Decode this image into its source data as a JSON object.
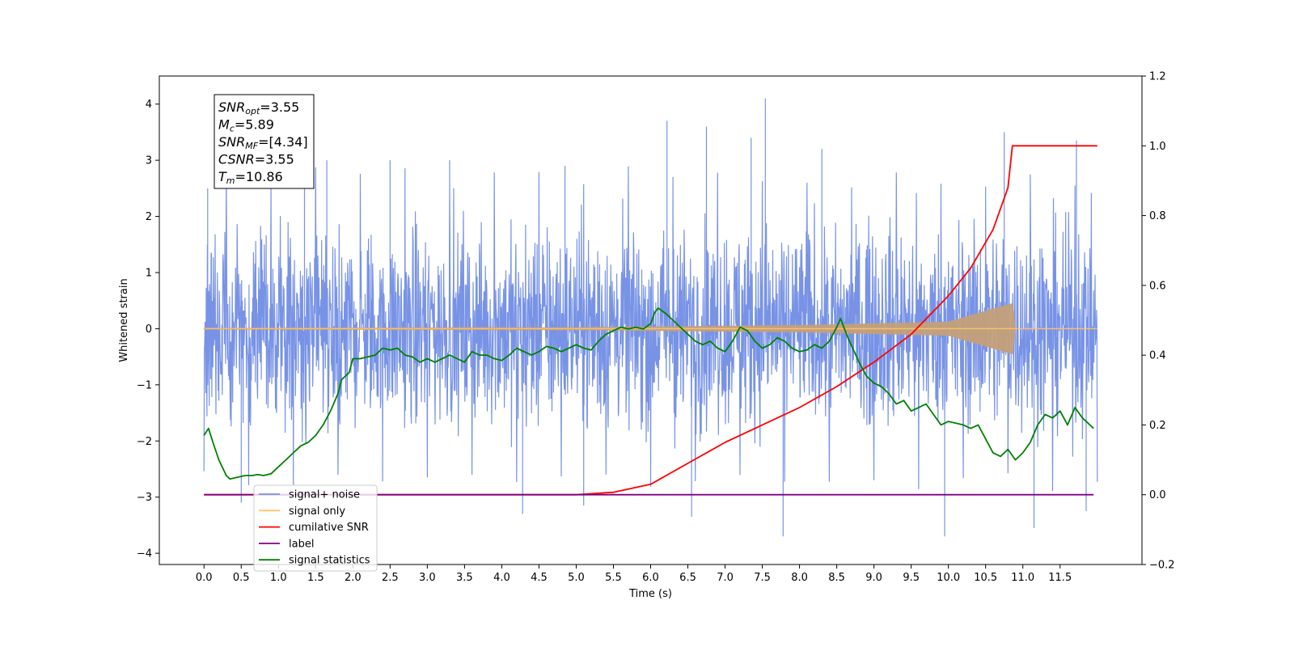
{
  "chart_data": {
    "type": "line",
    "xlabel": "Time (s)",
    "ylabel": "Whitened strain",
    "xlim": [
      -0.6,
      12.6
    ],
    "ylim": [
      -4.2,
      4.5
    ],
    "y2lim": [
      -0.2,
      1.2
    ],
    "x_ticks": [
      0.0,
      0.5,
      1.0,
      1.5,
      2.0,
      2.5,
      3.0,
      3.5,
      4.0,
      4.5,
      5.0,
      5.5,
      6.0,
      6.5,
      7.0,
      7.5,
      8.0,
      8.5,
      9.0,
      9.5,
      10.0,
      10.5,
      11.0,
      11.5
    ],
    "x_tick_labels": [
      "0.0",
      "0.5",
      "1.0",
      "1.5",
      "2.0",
      "2.5",
      "3.0",
      "3.5",
      "4.0",
      "4.5",
      "5.0",
      "5.5",
      "6.0",
      "6.5",
      "7.0",
      "7.5",
      "8.0",
      "8.5",
      "9.0",
      "9.5",
      "10.0",
      "10.5",
      "11.0",
      "11.5"
    ],
    "y_ticks": [
      -4,
      -3,
      -2,
      -1,
      0,
      1,
      2,
      3,
      4
    ],
    "y_tick_labels": [
      "−4",
      "−3",
      "−2",
      "−1",
      "0",
      "1",
      "2",
      "3",
      "4"
    ],
    "y2_ticks": [
      -0.2,
      0.0,
      0.2,
      0.4,
      0.6,
      0.8,
      1.0,
      1.2
    ],
    "y2_tick_labels": [
      "−0.2",
      "0.0",
      "0.2",
      "0.4",
      "0.6",
      "0.8",
      "1.0",
      "1.2"
    ],
    "legend_position": "lower-left",
    "series": [
      {
        "name": "signal+ noise",
        "axis": "left",
        "color": "#7893e6",
        "kind": "noise",
        "x_range": [
          0.0,
          12.0
        ],
        "core_amplitude": 1.9,
        "peak_values": [
          {
            "x": 0.05,
            "y": 2.5
          },
          {
            "x": 1.35,
            "y": 3.25
          },
          {
            "x": 1.65,
            "y": 3.0
          },
          {
            "x": 2.5,
            "y": 3.0
          },
          {
            "x": 3.3,
            "y": 3.0
          },
          {
            "x": 4.85,
            "y": 2.9
          },
          {
            "x": 6.22,
            "y": 3.7
          },
          {
            "x": 6.75,
            "y": 3.6
          },
          {
            "x": 7.35,
            "y": 3.4
          },
          {
            "x": 7.54,
            "y": 4.1
          },
          {
            "x": 8.3,
            "y": 3.2
          },
          {
            "x": 10.75,
            "y": 3.5
          },
          {
            "x": 11.72,
            "y": 3.35
          },
          {
            "x": 0.5,
            "y": -3.1
          },
          {
            "x": 4.28,
            "y": -3.3
          },
          {
            "x": 5.1,
            "y": -3.15
          },
          {
            "x": 6.55,
            "y": -3.35
          },
          {
            "x": 7.78,
            "y": -3.7
          },
          {
            "x": 9.95,
            "y": -3.7
          },
          {
            "x": 11.15,
            "y": -3.55
          },
          {
            "x": 11.85,
            "y": -3.25
          }
        ]
      },
      {
        "name": "signal only",
        "axis": "left",
        "color": "#ffc26b",
        "kind": "chirp",
        "x_range": [
          0.0,
          12.0
        ],
        "envelope": {
          "x": [
            0.0,
            5.0,
            8.0,
            10.0,
            10.86,
            10.9,
            12.0
          ],
          "y": [
            0.01,
            0.02,
            0.06,
            0.12,
            0.45,
            0.0,
            0.0
          ]
        }
      },
      {
        "name": "cumilative SNR",
        "axis": "right",
        "color": "#ff0000",
        "x": [
          0.0,
          5.0,
          5.5,
          6.0,
          6.5,
          7.0,
          7.5,
          8.0,
          8.5,
          9.0,
          9.5,
          10.0,
          10.3,
          10.6,
          10.8,
          10.86,
          12.0
        ],
        "y": [
          0.0,
          0.0,
          0.007,
          0.03,
          0.09,
          0.15,
          0.2,
          0.25,
          0.31,
          0.38,
          0.46,
          0.57,
          0.65,
          0.76,
          0.88,
          1.0,
          1.0
        ]
      },
      {
        "name": "label",
        "axis": "right",
        "color": "#800080",
        "x": [
          0.0,
          11.95
        ],
        "y": [
          0.0,
          0.0
        ]
      },
      {
        "name": "signal statistics",
        "axis": "right",
        "color": "#008000",
        "x": [
          0.0,
          0.06,
          0.12,
          0.2,
          0.3,
          0.35,
          0.45,
          0.55,
          0.65,
          0.72,
          0.8,
          0.9,
          1.0,
          1.1,
          1.2,
          1.3,
          1.4,
          1.5,
          1.6,
          1.7,
          1.8,
          1.85,
          1.95,
          2.0,
          2.1,
          2.2,
          2.3,
          2.4,
          2.5,
          2.6,
          2.7,
          2.8,
          2.9,
          3.0,
          3.1,
          3.2,
          3.3,
          3.4,
          3.5,
          3.6,
          3.7,
          3.8,
          3.9,
          4.0,
          4.1,
          4.2,
          4.3,
          4.4,
          4.5,
          4.6,
          4.7,
          4.8,
          4.9,
          5.0,
          5.1,
          5.2,
          5.3,
          5.4,
          5.5,
          5.6,
          5.7,
          5.8,
          5.9,
          6.0,
          6.05,
          6.1,
          6.2,
          6.3,
          6.4,
          6.5,
          6.6,
          6.7,
          6.8,
          6.9,
          7.0,
          7.1,
          7.2,
          7.3,
          7.4,
          7.5,
          7.6,
          7.7,
          7.8,
          7.9,
          8.0,
          8.1,
          8.2,
          8.3,
          8.4,
          8.5,
          8.55,
          8.65,
          8.8,
          8.9,
          9.0,
          9.1,
          9.2,
          9.3,
          9.4,
          9.5,
          9.6,
          9.7,
          9.8,
          9.9,
          10.0,
          10.1,
          10.2,
          10.3,
          10.4,
          10.5,
          10.6,
          10.7,
          10.8,
          10.9,
          11.0,
          11.1,
          11.2,
          11.3,
          11.4,
          11.5,
          11.6,
          11.7,
          11.8,
          11.9,
          11.95
        ],
        "y": [
          0.17,
          0.19,
          0.15,
          0.1,
          0.055,
          0.045,
          0.05,
          0.055,
          0.055,
          0.058,
          0.055,
          0.06,
          0.08,
          0.1,
          0.12,
          0.14,
          0.15,
          0.17,
          0.2,
          0.24,
          0.29,
          0.33,
          0.35,
          0.39,
          0.39,
          0.395,
          0.4,
          0.42,
          0.415,
          0.42,
          0.4,
          0.395,
          0.38,
          0.39,
          0.38,
          0.39,
          0.4,
          0.39,
          0.38,
          0.41,
          0.4,
          0.4,
          0.39,
          0.385,
          0.4,
          0.42,
          0.41,
          0.4,
          0.41,
          0.425,
          0.42,
          0.41,
          0.42,
          0.43,
          0.42,
          0.415,
          0.44,
          0.46,
          0.47,
          0.48,
          0.475,
          0.48,
          0.475,
          0.49,
          0.52,
          0.535,
          0.52,
          0.5,
          0.48,
          0.46,
          0.44,
          0.43,
          0.44,
          0.42,
          0.41,
          0.44,
          0.48,
          0.47,
          0.44,
          0.42,
          0.43,
          0.45,
          0.44,
          0.42,
          0.41,
          0.415,
          0.43,
          0.42,
          0.44,
          0.48,
          0.505,
          0.45,
          0.38,
          0.34,
          0.32,
          0.31,
          0.29,
          0.26,
          0.27,
          0.24,
          0.25,
          0.26,
          0.23,
          0.2,
          0.21,
          0.205,
          0.2,
          0.19,
          0.2,
          0.16,
          0.12,
          0.11,
          0.13,
          0.1,
          0.12,
          0.15,
          0.2,
          0.23,
          0.22,
          0.24,
          0.2,
          0.25,
          0.22,
          0.2,
          0.19
        ]
      }
    ],
    "legend": [
      {
        "label": "signal+ noise",
        "color": "#7893e6"
      },
      {
        "label": "signal only",
        "color": "#ffc26b"
      },
      {
        "label": "cumilative SNR",
        "color": "#ff0000"
      },
      {
        "label": "label",
        "color": "#800080"
      },
      {
        "label": "signal statistics",
        "color": "#008000"
      }
    ],
    "info_box": [
      {
        "main": "SNR",
        "sub": "opt",
        "value": "=3.55"
      },
      {
        "main": "M",
        "sub": "c",
        "value": "=5.89"
      },
      {
        "main": "SNR",
        "sub": "MF",
        "value": "=[4.34]"
      },
      {
        "main": "CSNR",
        "sub": "",
        "value": "=3.55"
      },
      {
        "main": "T",
        "sub": "m",
        "value": "=10.86"
      }
    ],
    "colors": {
      "axes": "#000000",
      "noise": "#7893e6",
      "signal": "#ffc26b",
      "snr": "#ff0000",
      "label": "#800080",
      "statistics": "#008000"
    }
  }
}
